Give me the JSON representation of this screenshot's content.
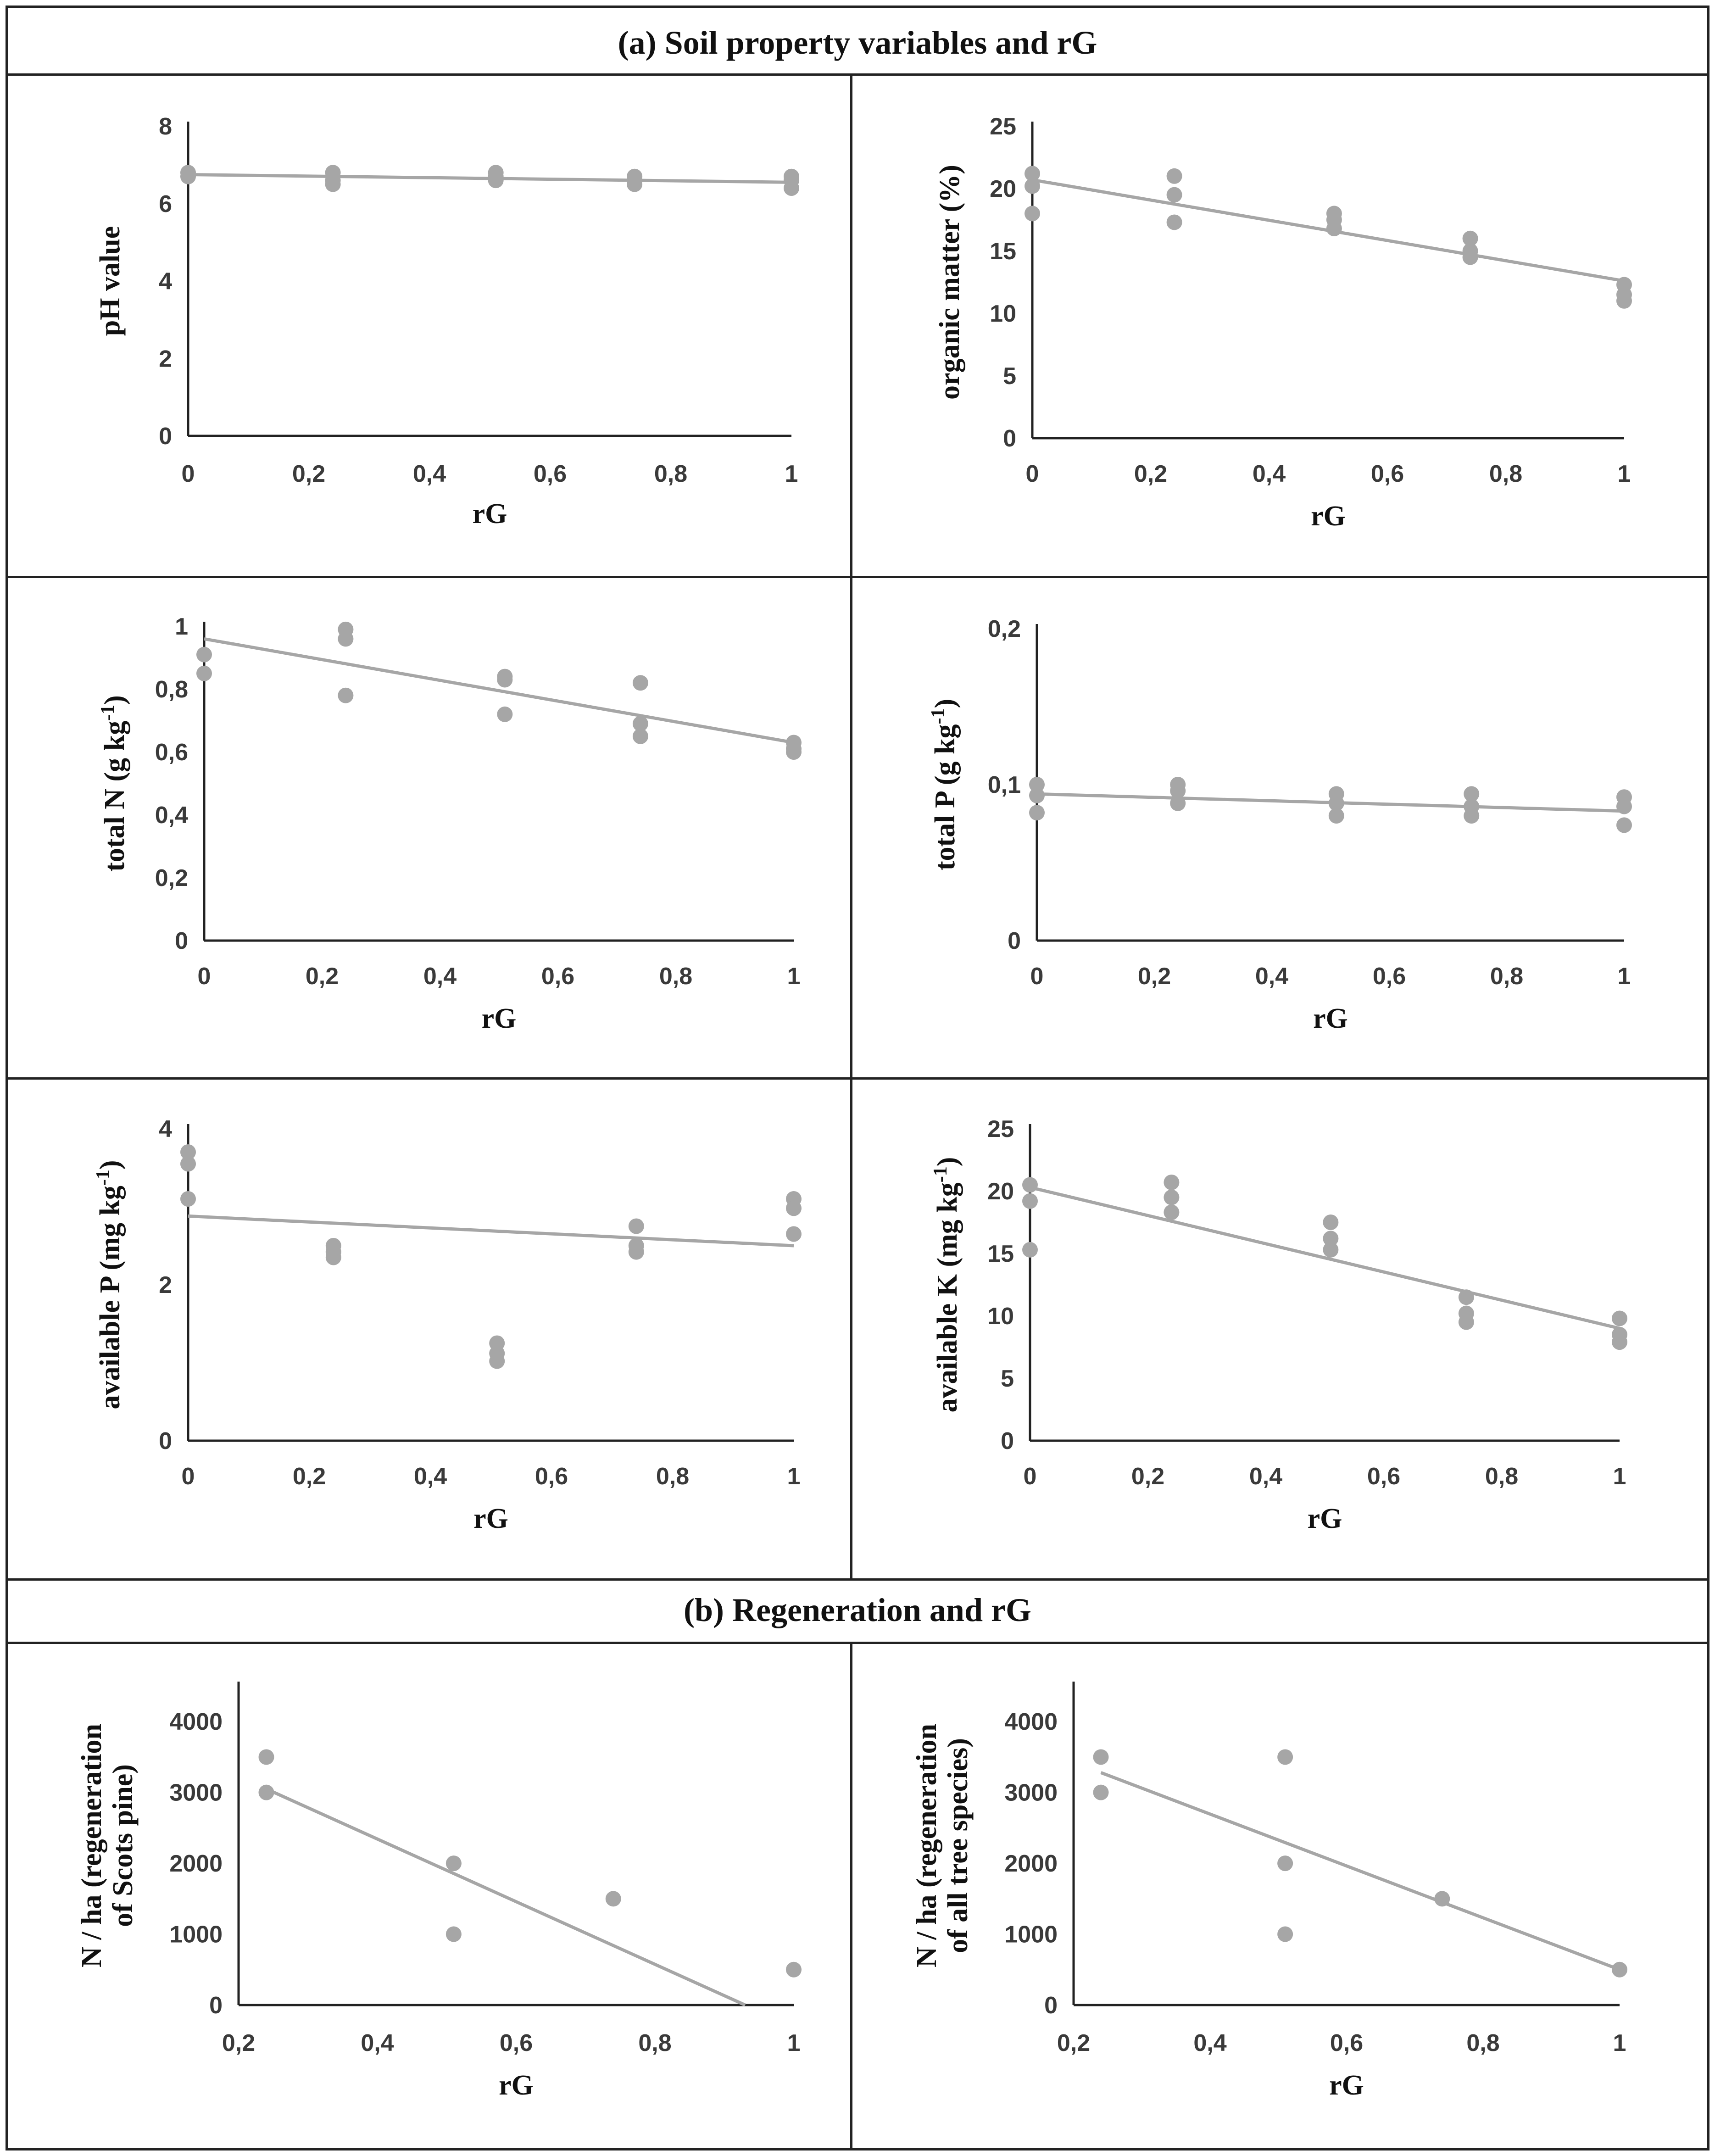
{
  "sections": {
    "a": "(a)  Soil property variables and rG",
    "b": "(b) Regeneration and rG"
  },
  "colors": {
    "marker": "#a6a6a6",
    "axis": "#222222",
    "text": "#111111"
  },
  "chart_data": [
    {
      "id": "ph",
      "type": "scatter",
      "title": "",
      "xlabel": "rG",
      "ylabel": "pH value",
      "xlim": [
        0,
        1
      ],
      "ylim": [
        0,
        8
      ],
      "xticks": [
        0,
        0.2,
        0.4,
        0.6,
        0.8,
        1
      ],
      "yticks": [
        0,
        2,
        4,
        6,
        8
      ],
      "xtick_labels": [
        "0",
        "0,2",
        "0,4",
        "0,6",
        "0,8",
        "1"
      ],
      "ytick_labels": [
        "0",
        "2",
        "4",
        "6",
        "8"
      ],
      "points": [
        [
          0,
          6.8
        ],
        [
          0,
          6.7
        ],
        [
          0.24,
          6.8
        ],
        [
          0.24,
          6.6
        ],
        [
          0.24,
          6.5
        ],
        [
          0.51,
          6.8
        ],
        [
          0.51,
          6.7
        ],
        [
          0.51,
          6.6
        ],
        [
          0.74,
          6.7
        ],
        [
          0.74,
          6.6
        ],
        [
          0.74,
          6.5
        ],
        [
          1,
          6.7
        ],
        [
          1,
          6.6
        ],
        [
          1,
          6.4
        ]
      ],
      "trendline": [
        [
          0,
          6.75
        ],
        [
          1,
          6.55
        ]
      ]
    },
    {
      "id": "om",
      "type": "scatter",
      "title": "",
      "xlabel": "rG",
      "ylabel": "organic matter (%)",
      "xlim": [
        0,
        1
      ],
      "ylim": [
        0,
        25
      ],
      "xticks": [
        0,
        0.2,
        0.4,
        0.6,
        0.8,
        1
      ],
      "yticks": [
        0,
        5,
        10,
        15,
        20,
        25
      ],
      "xtick_labels": [
        "0",
        "0,2",
        "0,4",
        "0,6",
        "0,8",
        "1"
      ],
      "ytick_labels": [
        "0",
        "5",
        "10",
        "15",
        "20",
        "25"
      ],
      "points": [
        [
          0,
          21.2
        ],
        [
          0,
          20.2
        ],
        [
          0,
          18
        ],
        [
          0.24,
          21
        ],
        [
          0.24,
          19.5
        ],
        [
          0.24,
          17.3
        ],
        [
          0.51,
          18
        ],
        [
          0.51,
          17.5
        ],
        [
          0.51,
          16.8
        ],
        [
          0.74,
          16
        ],
        [
          0.74,
          15
        ],
        [
          0.74,
          14.5
        ],
        [
          1,
          12.3
        ],
        [
          1,
          11.5
        ],
        [
          1,
          11
        ]
      ],
      "trendline": [
        [
          0,
          20.7
        ],
        [
          1,
          12.6
        ]
      ]
    },
    {
      "id": "tn",
      "type": "scatter",
      "title": "",
      "xlabel": "rG",
      "ylabel": "total N (g kg-1)",
      "xlim": [
        0,
        1
      ],
      "ylim": [
        0,
        1
      ],
      "xticks": [
        0,
        0.2,
        0.4,
        0.6,
        0.8,
        1
      ],
      "yticks": [
        0,
        0.2,
        0.4,
        0.6,
        0.8,
        1
      ],
      "xtick_labels": [
        "0",
        "0,2",
        "0,4",
        "0,6",
        "0,8",
        "1"
      ],
      "ytick_labels": [
        "0",
        "0,2",
        "0,4",
        "0,6",
        "0,8",
        "1"
      ],
      "points": [
        [
          0,
          0.91
        ],
        [
          0,
          0.85
        ],
        [
          0.24,
          0.99
        ],
        [
          0.24,
          0.96
        ],
        [
          0.24,
          0.78
        ],
        [
          0.51,
          0.84
        ],
        [
          0.51,
          0.83
        ],
        [
          0.51,
          0.72
        ],
        [
          0.74,
          0.82
        ],
        [
          0.74,
          0.69
        ],
        [
          0.74,
          0.65
        ],
        [
          1,
          0.63
        ],
        [
          1,
          0.61
        ],
        [
          1,
          0.6
        ]
      ],
      "trendline": [
        [
          0,
          0.96
        ],
        [
          1,
          0.63
        ]
      ]
    },
    {
      "id": "tp",
      "type": "scatter",
      "title": "",
      "xlabel": "rG",
      "ylabel": "total P (g kg-1)",
      "xlim": [
        0,
        1
      ],
      "ylim": [
        0,
        0.2
      ],
      "xticks": [
        0,
        0.2,
        0.4,
        0.6,
        0.8,
        1
      ],
      "yticks": [
        0,
        0.1,
        0.2
      ],
      "xtick_labels": [
        "0",
        "0,2",
        "0,4",
        "0,6",
        "0,8",
        "1"
      ],
      "ytick_labels": [
        "0",
        "0,1",
        "0,2"
      ],
      "points": [
        [
          0,
          0.1
        ],
        [
          0,
          0.093
        ],
        [
          0,
          0.082
        ],
        [
          0.24,
          0.1
        ],
        [
          0.24,
          0.096
        ],
        [
          0.24,
          0.088
        ],
        [
          0.51,
          0.094
        ],
        [
          0.51,
          0.088
        ],
        [
          0.51,
          0.08
        ],
        [
          0.74,
          0.094
        ],
        [
          0.74,
          0.086
        ],
        [
          0.74,
          0.08
        ],
        [
          1,
          0.092
        ],
        [
          1,
          0.086
        ],
        [
          1,
          0.074
        ]
      ],
      "trendline": [
        [
          0,
          0.094
        ],
        [
          1,
          0.083
        ]
      ]
    },
    {
      "id": "ap",
      "type": "scatter",
      "title": "",
      "xlabel": "rG",
      "ylabel": "available P  (mg kg-1)",
      "xlim": [
        0,
        1
      ],
      "ylim": [
        0,
        4
      ],
      "xticks": [
        0,
        0.2,
        0.4,
        0.6,
        0.8,
        1
      ],
      "yticks": [
        0,
        2,
        4
      ],
      "xtick_labels": [
        "0",
        "0,2",
        "0,4",
        "0,6",
        "0,8",
        "1"
      ],
      "ytick_labels": [
        "0",
        "2",
        "4"
      ],
      "points": [
        [
          0,
          3.7
        ],
        [
          0,
          3.55
        ],
        [
          0,
          3.1
        ],
        [
          0.24,
          2.5
        ],
        [
          0.24,
          2.42
        ],
        [
          0.24,
          2.35
        ],
        [
          0.51,
          1.25
        ],
        [
          0.51,
          1.12
        ],
        [
          0.51,
          1.02
        ],
        [
          0.74,
          2.75
        ],
        [
          0.74,
          2.5
        ],
        [
          0.74,
          2.42
        ],
        [
          1,
          3.1
        ],
        [
          1,
          2.98
        ],
        [
          1,
          2.65
        ]
      ],
      "trendline": [
        [
          0,
          2.88
        ],
        [
          1,
          2.5
        ]
      ]
    },
    {
      "id": "ak",
      "type": "scatter",
      "title": "",
      "xlabel": "rG",
      "ylabel": "available K  (mg kg-1)",
      "xlim": [
        0,
        1
      ],
      "ylim": [
        0,
        25
      ],
      "xticks": [
        0,
        0.2,
        0.4,
        0.6,
        0.8,
        1
      ],
      "yticks": [
        0,
        5,
        10,
        15,
        20,
        25
      ],
      "xtick_labels": [
        "0",
        "0,2",
        "0,4",
        "0,6",
        "0,8",
        "1"
      ],
      "ytick_labels": [
        "0",
        "5",
        "10",
        "15",
        "20",
        "25"
      ],
      "points": [
        [
          0,
          20.5
        ],
        [
          0,
          19.2
        ],
        [
          0,
          15.3
        ],
        [
          0.24,
          20.7
        ],
        [
          0.24,
          19.5
        ],
        [
          0.24,
          18.3
        ],
        [
          0.51,
          17.5
        ],
        [
          0.51,
          16.2
        ],
        [
          0.51,
          15.3
        ],
        [
          0.74,
          11.5
        ],
        [
          0.74,
          10.2
        ],
        [
          0.74,
          9.5
        ],
        [
          1,
          9.8
        ],
        [
          1,
          8.5
        ],
        [
          1,
          7.9
        ]
      ],
      "trendline": [
        [
          0,
          20.3
        ],
        [
          1,
          9
        ]
      ]
    },
    {
      "id": "scots",
      "type": "scatter",
      "title": "",
      "xlabel": "rG",
      "ylabel_lines": [
        "N / ha (regeneration",
        "of Scots pine)"
      ],
      "xlim": [
        0.2,
        1
      ],
      "ylim": [
        0,
        4500
      ],
      "xticks": [
        0.2,
        0.4,
        0.6,
        0.8,
        1
      ],
      "yticks": [
        0,
        1000,
        2000,
        3000,
        4000
      ],
      "xtick_labels": [
        "0,2",
        "0,4",
        "0,6",
        "0,8",
        "1"
      ],
      "ytick_labels": [
        "0",
        "1000",
        "2000",
        "3000",
        "4000"
      ],
      "points": [
        [
          0.24,
          3500
        ],
        [
          0.24,
          3000
        ],
        [
          0.51,
          2000
        ],
        [
          0.51,
          1000
        ],
        [
          0.74,
          1500
        ],
        [
          1,
          500
        ]
      ],
      "trendline": [
        [
          0.24,
          3050
        ],
        [
          0.93,
          0
        ]
      ]
    },
    {
      "id": "alltrees",
      "type": "scatter",
      "title": "",
      "xlabel": "rG",
      "ylabel_lines": [
        "N / ha (regeneration",
        "of all tree species)"
      ],
      "xlim": [
        0.2,
        1
      ],
      "ylim": [
        0,
        4500
      ],
      "xticks": [
        0.2,
        0.4,
        0.6,
        0.8,
        1
      ],
      "yticks": [
        0,
        1000,
        2000,
        3000,
        4000
      ],
      "xtick_labels": [
        "0,2",
        "0,4",
        "0,6",
        "0,8",
        "1"
      ],
      "ytick_labels": [
        "0",
        "1000",
        "2000",
        "3000",
        "4000"
      ],
      "points": [
        [
          0.24,
          3500
        ],
        [
          0.24,
          3000
        ],
        [
          0.51,
          3500
        ],
        [
          0.51,
          2000
        ],
        [
          0.51,
          1000
        ],
        [
          0.74,
          1500
        ],
        [
          1,
          500
        ]
      ],
      "trendline": [
        [
          0.24,
          3280
        ],
        [
          1,
          500
        ]
      ]
    }
  ]
}
